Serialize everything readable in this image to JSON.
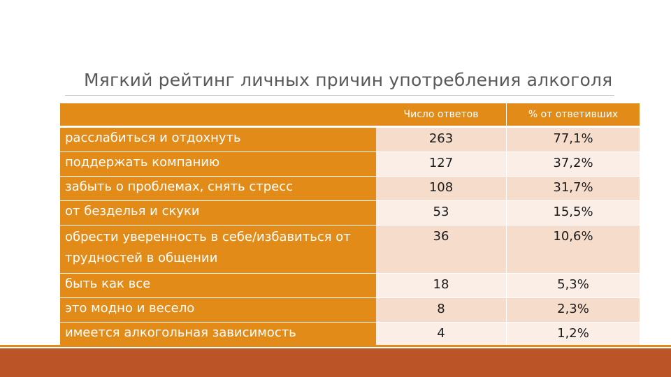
{
  "title": "Мягкий рейтинг личных причин употребления алкоголя",
  "table": {
    "headers": [
      "",
      "Число ответов",
      "% от ответивших"
    ],
    "rows": [
      {
        "reason": "расслабиться и отдохнуть",
        "count": "263",
        "percent": "77,1%"
      },
      {
        "reason": "поддержать компанию",
        "count": "127",
        "percent": "37,2%"
      },
      {
        "reason": "забыть о проблемах, снять стресс",
        "count": "108",
        "percent": "31,7%"
      },
      {
        "reason": "от безделья и скуки",
        "count": "53",
        "percent": "15,5%"
      },
      {
        "reason": "обрести уверенность в себе/избавиться от трудностей в общении",
        "count": "36",
        "percent": "10,6%"
      },
      {
        "reason": "быть как все",
        "count": "18",
        "percent": "5,3%"
      },
      {
        "reason": "это модно и весело",
        "count": "8",
        "percent": "2,3%"
      },
      {
        "reason": "имеется алкогольная зависимость",
        "count": "4",
        "percent": "1,2%"
      }
    ]
  },
  "colors": {
    "header_fill": "#e38b19",
    "row_fill_dark": "#f6dccb",
    "row_fill_light": "#fbeee7",
    "bottom_band": "#bb5527"
  }
}
